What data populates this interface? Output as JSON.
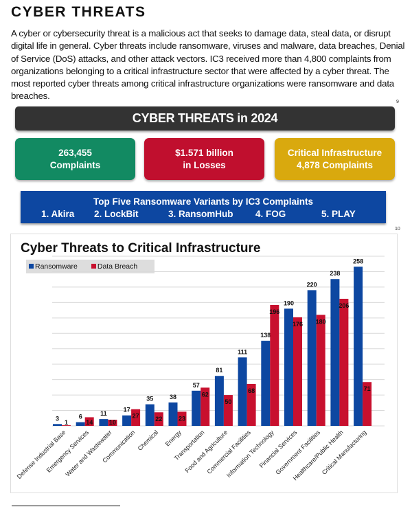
{
  "title": "CYBER THREATS",
  "paragraph": "A cyber or cybersecurity threat is a malicious act that seeks to damage data, steal data, or disrupt digital life in general. Cyber threats include ransomware, viruses and malware, data breaches, Denial of Service (DoS) attacks, and other attack vectors. IC3 received more than 4,800 complaints from organizations belonging to a critical infrastructure sector that were affected by a cyber threat. The most reported cyber threats among critical infrastructure organizations were ransomware and data breaches.",
  "footnotes": [
    "9",
    "10"
  ],
  "banner": "CYBER THREATS in 2024",
  "stats": [
    {
      "line1": "263,455",
      "line2": "Complaints",
      "color": "#128a62"
    },
    {
      "line1": "$1.571 billion",
      "line2": "in Losses",
      "color": "#c00f2e"
    },
    {
      "line1": "Critical Infrastructure",
      "line2": "4,878 Complaints",
      "color": "#d9a90e"
    }
  ],
  "variants": {
    "title": "Top Five Ransomware Variants by IC3 Complaints",
    "items": [
      "1. Akira",
      "2. LockBit",
      "3. RansomHub",
      "4. FOG",
      "5. PLAY"
    ]
  },
  "chart_data": {
    "type": "bar",
    "title": "Cyber Threats to Critical Infrastructure",
    "categories": [
      "Defense Industrial Base",
      "Emergency Services",
      "Water and Wastewater",
      "Communication",
      "Chemical",
      "Energy",
      "Transportation",
      "Food and Agriculture",
      "Commercial Facilities",
      "Information Technology",
      "Financial Services",
      "Government Facilities",
      "Healthcare/Public Health",
      "Critical Manufacturing"
    ],
    "series": [
      {
        "name": "Ransomware",
        "color": "#0d47a1",
        "values": [
          3,
          6,
          11,
          17,
          35,
          38,
          57,
          81,
          111,
          138,
          190,
          220,
          238,
          258
        ]
      },
      {
        "name": "Data Breach",
        "color": "#c8102e",
        "values": [
          1,
          14,
          10,
          27,
          22,
          23,
          62,
          50,
          68,
          196,
          176,
          180,
          206,
          71
        ]
      }
    ],
    "ylim": [
      0,
      275
    ],
    "grid": true,
    "legend": "top-left"
  }
}
